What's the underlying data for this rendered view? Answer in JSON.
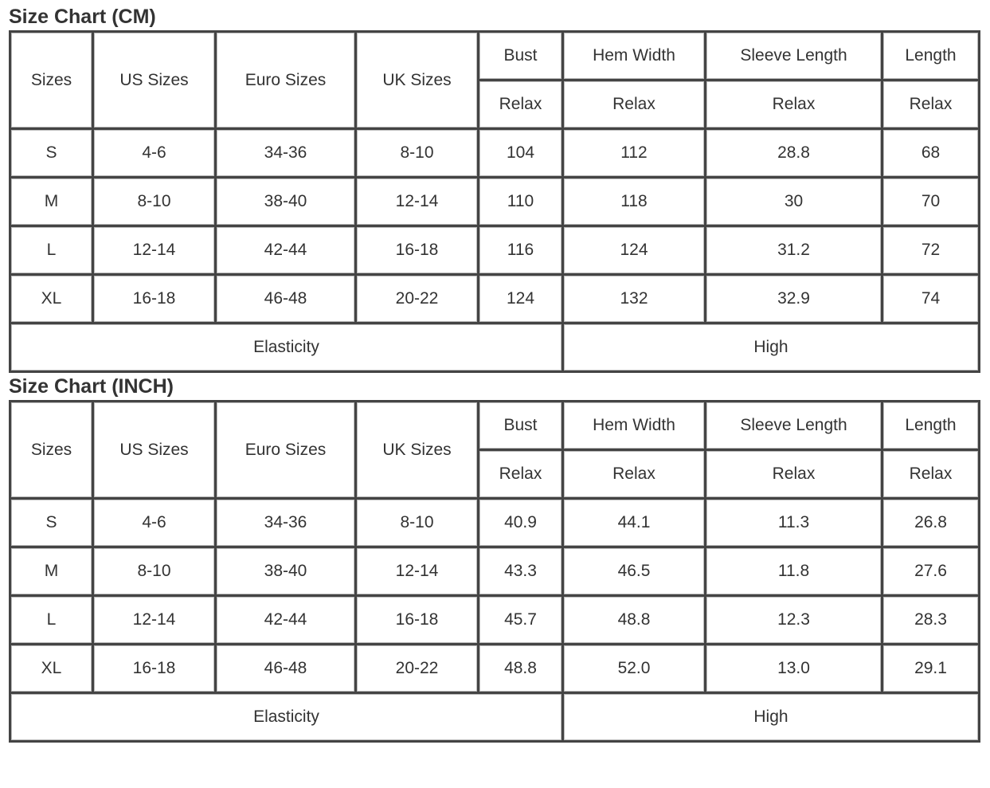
{
  "tables": [
    {
      "title": "Size Chart (CM)",
      "headers": {
        "sizes": "Sizes",
        "us": "US Sizes",
        "euro": "Euro Sizes",
        "uk": "UK Sizes",
        "bust": "Bust",
        "hem": "Hem Width",
        "sleeve": "Sleeve Length",
        "length": "Length",
        "sub": "Relax"
      },
      "rows": [
        [
          "S",
          "4-6",
          "34-36",
          "8-10",
          "104",
          "112",
          "28.8",
          "68"
        ],
        [
          "M",
          "8-10",
          "38-40",
          "12-14",
          "110",
          "118",
          "30",
          "70"
        ],
        [
          "L",
          "12-14",
          "42-44",
          "16-18",
          "116",
          "124",
          "31.2",
          "72"
        ],
        [
          "XL",
          "16-18",
          "46-48",
          "20-22",
          "124",
          "132",
          "32.9",
          "74"
        ]
      ],
      "footer": {
        "label": "Elasticity",
        "value": "High"
      }
    },
    {
      "title": "Size Chart (INCH)",
      "headers": {
        "sizes": "Sizes",
        "us": "US Sizes",
        "euro": "Euro Sizes",
        "uk": "UK Sizes",
        "bust": "Bust",
        "hem": "Hem Width",
        "sleeve": "Sleeve Length",
        "length": "Length",
        "sub": "Relax"
      },
      "rows": [
        [
          "S",
          "4-6",
          "34-36",
          "8-10",
          "40.9",
          "44.1",
          "11.3",
          "26.8"
        ],
        [
          "M",
          "8-10",
          "38-40",
          "12-14",
          "43.3",
          "46.5",
          "11.8",
          "27.6"
        ],
        [
          "L",
          "12-14",
          "42-44",
          "16-18",
          "45.7",
          "48.8",
          "12.3",
          "28.3"
        ],
        [
          "XL",
          "16-18",
          "46-48",
          "20-22",
          "48.8",
          "52.0",
          "13.0",
          "29.1"
        ]
      ],
      "footer": {
        "label": "Elasticity",
        "value": "High"
      }
    }
  ]
}
